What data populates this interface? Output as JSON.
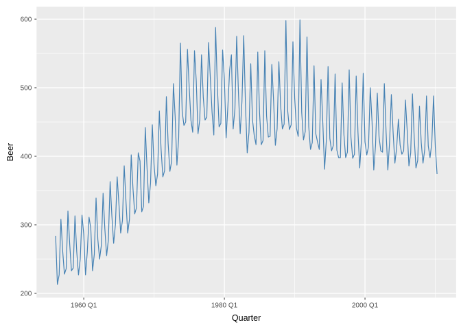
{
  "chart_data": {
    "type": "line",
    "title": "",
    "xlabel": "Quarter",
    "ylabel": "Beer",
    "x_tick_labels": [
      "1960 Q1",
      "1980 Q1",
      "2000 Q1"
    ],
    "x_tick_positions": [
      1960.0,
      1980.0,
      2000.0
    ],
    "x_minor_positions": [
      1950.0,
      1970.0,
      1990.0,
      2010.0
    ],
    "y_tick_labels": [
      "200",
      "300",
      "400",
      "500",
      "600"
    ],
    "y_tick_positions": [
      200,
      300,
      400,
      500,
      600
    ],
    "y_minor_positions": [
      250,
      350,
      450,
      550
    ],
    "x_domain": [
      1956.0,
      2010.25
    ],
    "y_domain": [
      213,
      599
    ],
    "expand_frac": 0.05,
    "grid": "on",
    "legend": "none",
    "series": [
      {
        "name": "Beer",
        "start_year": 1956,
        "start_quarter": 1,
        "frequency": 4,
        "values": [
          284,
          213,
          227,
          308,
          262,
          228,
          236,
          320,
          272,
          233,
          237,
          313,
          261,
          227,
          250,
          314,
          286,
          227,
          260,
          311,
          295,
          233,
          257,
          339,
          279,
          250,
          270,
          346,
          294,
          255,
          278,
          363,
          313,
          273,
          300,
          370,
          331,
          288,
          306,
          386,
          335,
          288,
          308,
          402,
          353,
          316,
          325,
          405,
          393,
          319,
          327,
          442,
          383,
          332,
          361,
          446,
          387,
          357,
          374,
          466,
          410,
          370,
          379,
          487,
          419,
          378,
          393,
          506,
          458,
          387,
          427,
          565,
          465,
          445,
          450,
          556,
          500,
          452,
          435,
          554,
          510,
          433,
          453,
          548,
          486,
          453,
          457,
          566,
          515,
          464,
          431,
          588,
          503,
          443,
          448,
          555,
          513,
          427,
          473,
          526,
          548,
          440,
          469,
          575,
          493,
          433,
          480,
          576,
          475,
          405,
          435,
          535,
          453,
          430,
          417,
          552,
          464,
          417,
          423,
          554,
          459,
          428,
          429,
          534,
          481,
          416,
          440,
          538,
          474,
          440,
          447,
          598,
          467,
          439,
          446,
          567,
          485,
          441,
          429,
          599,
          464,
          424,
          436,
          574,
          443,
          410,
          420,
          532,
          433,
          421,
          410,
          512,
          449,
          381,
          423,
          531,
          426,
          408,
          416,
          520,
          409,
          398,
          398,
          507,
          432,
          398,
          406,
          526,
          428,
          397,
          403,
          517,
          435,
          383,
          424,
          521,
          421,
          402,
          414,
          500,
          451,
          380,
          416,
          492,
          428,
          408,
          406,
          506,
          435,
          380,
          421,
          490,
          435,
          390,
          412,
          454,
          416,
          403,
          408,
          482,
          438,
          386,
          405,
          491,
          427,
          383,
          394,
          473,
          420,
          390,
          410,
          488,
          415,
          398,
          419,
          488,
          414,
          374
        ]
      }
    ],
    "colors": {
      "line": "#4682B4",
      "panel_bg": "#EBEBEB",
      "grid_major": "#FFFFFF",
      "grid_minor": "#FFFFFF",
      "tick_mark": "#333333",
      "tick_text": "#4D4D4D",
      "axis_title_text": "#000000",
      "outer_bg": "#FFFFFF"
    }
  }
}
